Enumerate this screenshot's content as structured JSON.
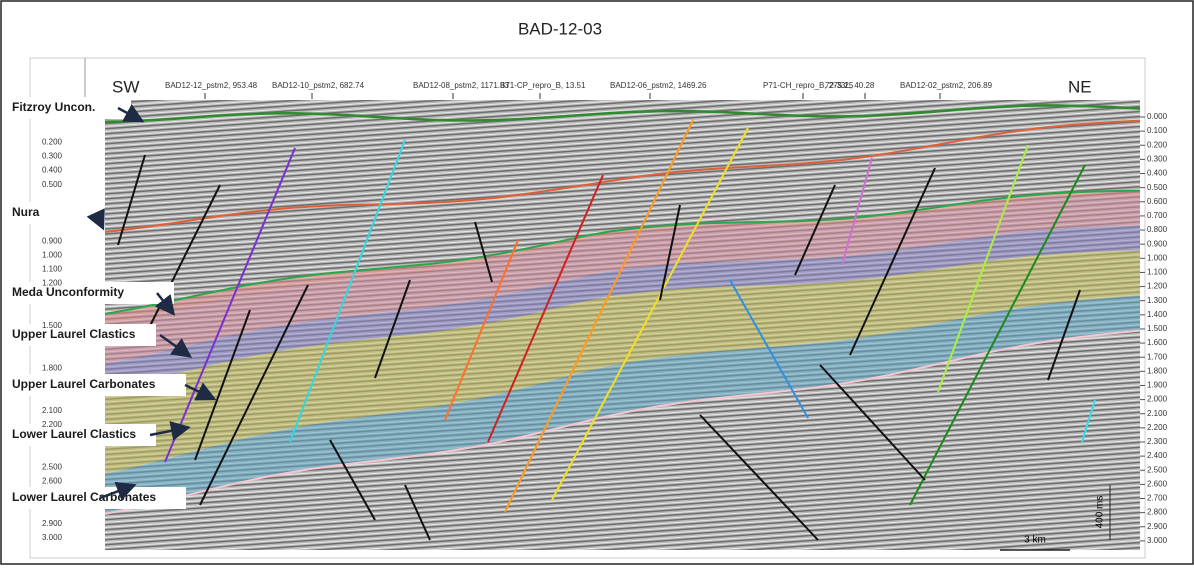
{
  "title": "BAD-12-03",
  "directions": {
    "left": "SW",
    "right": "NE"
  },
  "wells": [
    "BAD12-12_pstm2, 953.48",
    "BAD12-10_pstm2, 682.74",
    "BAD12-08_pstm2, 1171.83",
    "B71-CP_repro_B, 13.51",
    "BAD12-06_pstm2, 1469.26",
    "P71-CH_repro_B, 275.25",
    "72-33L, 40.28",
    "BAD12-02_pstm2, 206.89"
  ],
  "horizons": [
    "Fitzroy Uncon.",
    "Nura",
    "Meda Unconformity",
    "Upper Laurel Clastics",
    "Upper Laurel Carbonates",
    "Lower Laurel Clastics",
    "Lower  Laurel Carbonates"
  ],
  "left_axis": [
    "0.200",
    "0.300",
    "0.400",
    "0.500",
    "0.900",
    "1.000",
    "1.100",
    "1.200",
    "1.500",
    "1.800",
    "2.100",
    "2.200",
    "2.500",
    "2.600",
    "2.900",
    "3.000"
  ],
  "right_axis": [
    "0.000",
    "0.100",
    "0.200",
    "0.300",
    "0.400",
    "0.500",
    "0.600",
    "0.700",
    "0.800",
    "0.900",
    "1.000",
    "1.100",
    "1.200",
    "1.300",
    "1.400",
    "1.500",
    "1.600",
    "1.700",
    "1.800",
    "1.900",
    "2.000",
    "2.100",
    "2.200",
    "2.300",
    "2.400",
    "2.500",
    "2.600",
    "2.700",
    "2.800",
    "2.900",
    "3.000"
  ],
  "time_scale": "400 ms",
  "distance_scale": "3 km"
}
